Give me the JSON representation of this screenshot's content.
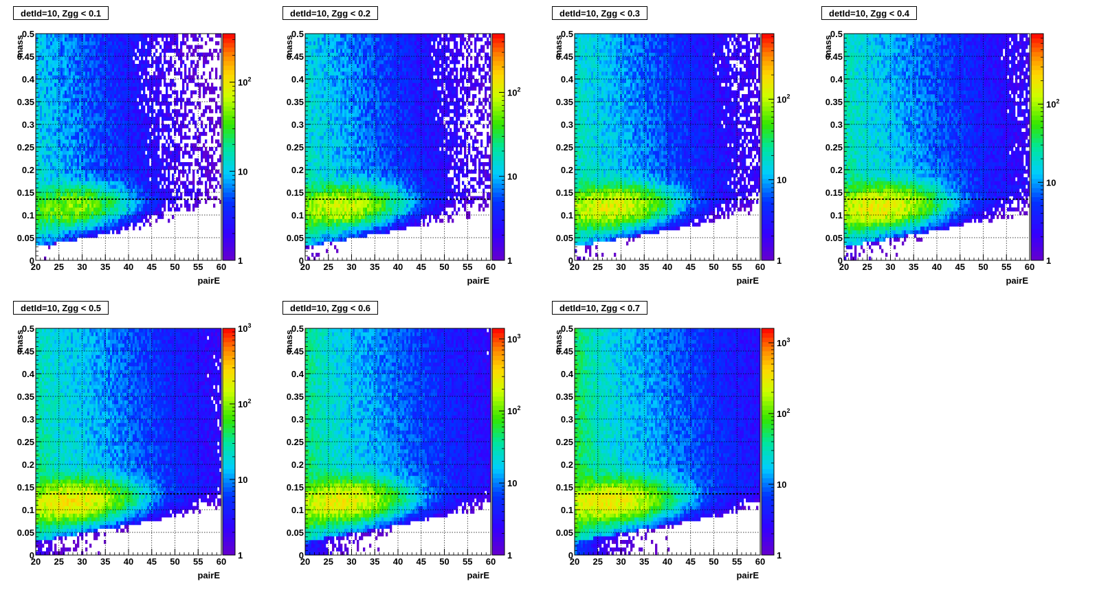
{
  "chart_data": [
    {
      "type": "heatmap",
      "title": "detId=10, Zgg < 0.1",
      "xlabel": "pairE",
      "ylabel": "mass",
      "xlim": [
        20,
        60
      ],
      "ylim": [
        0,
        0.5
      ],
      "x_ticks": [
        20,
        25,
        30,
        35,
        40,
        45,
        50,
        55,
        60
      ],
      "y_ticks": [
        0,
        0.05,
        0.1,
        0.15,
        0.2,
        0.25,
        0.3,
        0.35,
        0.4,
        0.45,
        0.5
      ],
      "z_scale": "log",
      "z_max": 350,
      "z_tick_labels": [
        "1",
        "10",
        "10^2"
      ],
      "z_tick_values": [
        1,
        10,
        100
      ],
      "reference_line_y": 0.135,
      "grid": true
    },
    {
      "type": "heatmap",
      "title": "detId=10, Zgg < 0.2",
      "xlabel": "pairE",
      "ylabel": "mass",
      "xlim": [
        20,
        60
      ],
      "ylim": [
        0,
        0.5
      ],
      "x_ticks": [
        20,
        25,
        30,
        35,
        40,
        45,
        50,
        55,
        60
      ],
      "y_ticks": [
        0,
        0.05,
        0.1,
        0.15,
        0.2,
        0.25,
        0.3,
        0.35,
        0.4,
        0.45,
        0.5
      ],
      "z_scale": "log",
      "z_max": 500,
      "z_tick_labels": [
        "1",
        "10",
        "10^2"
      ],
      "z_tick_values": [
        1,
        10,
        100
      ],
      "reference_line_y": 0.135,
      "grid": true
    },
    {
      "type": "heatmap",
      "title": "detId=10, Zgg < 0.3",
      "xlabel": "pairE",
      "ylabel": "mass",
      "xlim": [
        20,
        60
      ],
      "ylim": [
        0,
        0.5
      ],
      "x_ticks": [
        20,
        25,
        30,
        35,
        40,
        45,
        50,
        55,
        60
      ],
      "y_ticks": [
        0,
        0.05,
        0.1,
        0.15,
        0.2,
        0.25,
        0.3,
        0.35,
        0.4,
        0.45,
        0.5
      ],
      "z_scale": "log",
      "z_max": 650,
      "z_tick_labels": [
        "1",
        "10",
        "10^2"
      ],
      "z_tick_values": [
        1,
        10,
        100
      ],
      "reference_line_y": 0.135,
      "grid": true
    },
    {
      "type": "heatmap",
      "title": "detId=10, Zgg < 0.4",
      "xlabel": "pairE",
      "ylabel": "mass",
      "xlim": [
        20,
        60
      ],
      "ylim": [
        0,
        0.5
      ],
      "x_ticks": [
        20,
        25,
        30,
        35,
        40,
        45,
        50,
        55,
        60
      ],
      "y_ticks": [
        0,
        0.05,
        0.1,
        0.15,
        0.2,
        0.25,
        0.3,
        0.35,
        0.4,
        0.45,
        0.5
      ],
      "z_scale": "log",
      "z_max": 800,
      "z_tick_labels": [
        "1",
        "10",
        "10^2"
      ],
      "z_tick_values": [
        1,
        10,
        100
      ],
      "reference_line_y": 0.135,
      "grid": true
    },
    {
      "type": "heatmap",
      "title": "detId=10, Zgg < 0.5",
      "xlabel": "pairE",
      "ylabel": "mass",
      "xlim": [
        20,
        60
      ],
      "ylim": [
        0,
        0.5
      ],
      "x_ticks": [
        20,
        25,
        30,
        35,
        40,
        45,
        50,
        55,
        60
      ],
      "y_ticks": [
        0,
        0.05,
        0.1,
        0.15,
        0.2,
        0.25,
        0.3,
        0.35,
        0.4,
        0.45,
        0.5
      ],
      "z_scale": "log",
      "z_max": 1000,
      "z_tick_labels": [
        "1",
        "10",
        "10^2",
        "10^3"
      ],
      "z_tick_values": [
        1,
        10,
        100,
        1000
      ],
      "reference_line_y": 0.135,
      "grid": true
    },
    {
      "type": "heatmap",
      "title": "detId=10, Zgg < 0.6",
      "xlabel": "pairE",
      "ylabel": "mass",
      "xlim": [
        20,
        60
      ],
      "ylim": [
        0,
        0.5
      ],
      "x_ticks": [
        20,
        25,
        30,
        35,
        40,
        45,
        50,
        55,
        60
      ],
      "y_ticks": [
        0,
        0.05,
        0.1,
        0.15,
        0.2,
        0.25,
        0.3,
        0.35,
        0.4,
        0.45,
        0.5
      ],
      "z_scale": "log",
      "z_max": 1400,
      "z_tick_labels": [
        "1",
        "10",
        "10^2",
        "10^3"
      ],
      "z_tick_values": [
        1,
        10,
        100,
        1000
      ],
      "reference_line_y": 0.135,
      "grid": true
    },
    {
      "type": "heatmap",
      "title": "detId=10, Zgg < 0.7",
      "xlabel": "pairE",
      "ylabel": "mass",
      "xlim": [
        20,
        60
      ],
      "ylim": [
        0,
        0.5
      ],
      "x_ticks": [
        20,
        25,
        30,
        35,
        40,
        45,
        50,
        55,
        60
      ],
      "y_ticks": [
        0,
        0.05,
        0.1,
        0.15,
        0.2,
        0.25,
        0.3,
        0.35,
        0.4,
        0.45,
        0.5
      ],
      "z_scale": "log",
      "z_max": 1600,
      "z_tick_labels": [
        "1",
        "10",
        "10^2",
        "10^3"
      ],
      "z_tick_values": [
        1,
        10,
        100,
        1000
      ],
      "reference_line_y": 0.135,
      "grid": true
    }
  ]
}
